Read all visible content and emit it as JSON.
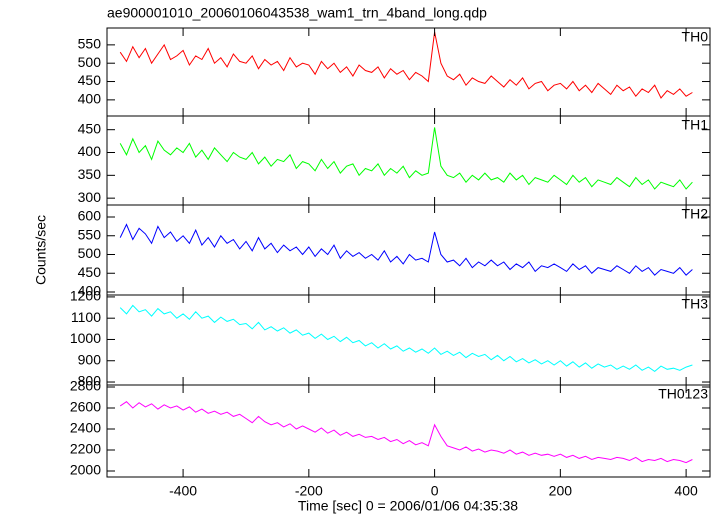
{
  "title": "ae900001010_20060106043538_wam1_trn_4band_long.qdp",
  "xlabel": "Time [sec] 0 = 2006/01/06 04:35:38",
  "ylabel": "Counts/sec",
  "chart_data": [
    {
      "type": "line",
      "label": "TH0",
      "color": "#ff0000",
      "xlim": [
        -521,
        438
      ],
      "ylim": [
        356,
        596
      ],
      "yticks": [
        400,
        450,
        500,
        550
      ],
      "x": [
        -500,
        -490,
        -480,
        -470,
        -460,
        -450,
        -440,
        -430,
        -420,
        -410,
        -400,
        -390,
        -380,
        -370,
        -360,
        -350,
        -340,
        -330,
        -320,
        -310,
        -300,
        -290,
        -280,
        -270,
        -260,
        -250,
        -240,
        -230,
        -220,
        -210,
        -200,
        -190,
        -180,
        -170,
        -160,
        -150,
        -140,
        -130,
        -120,
        -110,
        -100,
        -90,
        -80,
        -70,
        -60,
        -50,
        -40,
        -30,
        -20,
        -10,
        0,
        10,
        20,
        30,
        40,
        50,
        60,
        70,
        80,
        90,
        100,
        110,
        120,
        130,
        140,
        150,
        160,
        170,
        180,
        190,
        200,
        210,
        220,
        230,
        240,
        250,
        260,
        270,
        280,
        290,
        300,
        310,
        320,
        330,
        340,
        350,
        360,
        370,
        380,
        390,
        400,
        410
      ],
      "values": [
        530,
        505,
        545,
        515,
        540,
        500,
        525,
        550,
        510,
        520,
        535,
        495,
        520,
        510,
        540,
        500,
        515,
        490,
        525,
        505,
        500,
        520,
        485,
        510,
        495,
        505,
        480,
        515,
        490,
        500,
        495,
        470,
        505,
        485,
        500,
        475,
        490,
        465,
        495,
        480,
        475,
        490,
        460,
        485,
        470,
        480,
        455,
        475,
        465,
        450,
        585,
        500,
        465,
        455,
        470,
        440,
        460,
        450,
        445,
        465,
        450,
        435,
        455,
        440,
        460,
        430,
        445,
        450,
        425,
        440,
        445,
        430,
        450,
        425,
        440,
        420,
        445,
        430,
        415,
        440,
        425,
        435,
        410,
        430,
        420,
        440,
        405,
        425,
        415,
        430,
        410,
        420
      ]
    },
    {
      "type": "line",
      "label": "TH1",
      "color": "#00ff00",
      "xlim": [
        -521,
        438
      ],
      "ylim": [
        285,
        480
      ],
      "yticks": [
        300,
        350,
        400,
        450
      ],
      "x": [
        -500,
        -490,
        -480,
        -470,
        -460,
        -450,
        -440,
        -430,
        -420,
        -410,
        -400,
        -390,
        -380,
        -370,
        -360,
        -350,
        -340,
        -330,
        -320,
        -310,
        -300,
        -290,
        -280,
        -270,
        -260,
        -250,
        -240,
        -230,
        -220,
        -210,
        -200,
        -190,
        -180,
        -170,
        -160,
        -150,
        -140,
        -130,
        -120,
        -110,
        -100,
        -90,
        -80,
        -70,
        -60,
        -50,
        -40,
        -30,
        -20,
        -10,
        0,
        10,
        20,
        30,
        40,
        50,
        60,
        70,
        80,
        90,
        100,
        110,
        120,
        130,
        140,
        150,
        160,
        170,
        180,
        190,
        200,
        210,
        220,
        230,
        240,
        250,
        260,
        270,
        280,
        290,
        300,
        310,
        320,
        330,
        340,
        350,
        360,
        370,
        380,
        390,
        400,
        410
      ],
      "values": [
        420,
        395,
        430,
        400,
        415,
        385,
        425,
        405,
        395,
        410,
        400,
        420,
        390,
        405,
        385,
        410,
        395,
        380,
        400,
        390,
        385,
        400,
        375,
        390,
        370,
        385,
        380,
        395,
        365,
        380,
        375,
        360,
        385,
        365,
        380,
        355,
        370,
        375,
        350,
        365,
        360,
        375,
        350,
        365,
        355,
        370,
        345,
        360,
        350,
        355,
        455,
        370,
        350,
        345,
        355,
        335,
        350,
        340,
        355,
        340,
        345,
        335,
        355,
        340,
        350,
        330,
        345,
        340,
        335,
        350,
        340,
        330,
        350,
        335,
        345,
        325,
        340,
        335,
        330,
        345,
        335,
        325,
        345,
        330,
        340,
        320,
        335,
        330,
        325,
        340,
        320,
        335
      ]
    },
    {
      "type": "line",
      "label": "TH2",
      "color": "#0000ff",
      "xlim": [
        -521,
        438
      ],
      "ylim": [
        392,
        632
      ],
      "yticks": [
        400,
        450,
        500,
        550,
        600
      ],
      "x": [
        -500,
        -490,
        -480,
        -470,
        -460,
        -450,
        -440,
        -430,
        -420,
        -410,
        -400,
        -390,
        -380,
        -370,
        -360,
        -350,
        -340,
        -330,
        -320,
        -310,
        -300,
        -290,
        -280,
        -270,
        -260,
        -250,
        -240,
        -230,
        -220,
        -210,
        -200,
        -190,
        -180,
        -170,
        -160,
        -150,
        -140,
        -130,
        -120,
        -110,
        -100,
        -90,
        -80,
        -70,
        -60,
        -50,
        -40,
        -30,
        -20,
        -10,
        0,
        10,
        20,
        30,
        40,
        50,
        60,
        70,
        80,
        90,
        100,
        110,
        120,
        130,
        140,
        150,
        160,
        170,
        180,
        190,
        200,
        210,
        220,
        230,
        240,
        250,
        260,
        270,
        280,
        290,
        300,
        310,
        320,
        330,
        340,
        350,
        360,
        370,
        380,
        390,
        400,
        410
      ],
      "values": [
        545,
        580,
        540,
        570,
        555,
        530,
        575,
        545,
        560,
        535,
        550,
        530,
        565,
        525,
        545,
        520,
        550,
        530,
        540,
        515,
        535,
        510,
        545,
        515,
        530,
        505,
        525,
        510,
        520,
        500,
        520,
        495,
        515,
        500,
        525,
        490,
        510,
        495,
        505,
        490,
        500,
        485,
        510,
        480,
        495,
        475,
        500,
        485,
        490,
        480,
        560,
        500,
        480,
        485,
        470,
        490,
        465,
        480,
        470,
        485,
        470,
        480,
        460,
        475,
        465,
        480,
        455,
        470,
        465,
        475,
        465,
        455,
        475,
        460,
        470,
        450,
        465,
        460,
        455,
        470,
        460,
        450,
        470,
        455,
        465,
        445,
        460,
        455,
        450,
        465,
        445,
        460
      ]
    },
    {
      "type": "line",
      "label": "TH3",
      "color": "#00ffff",
      "xlim": [
        -521,
        438
      ],
      "ylim": [
        786,
        1209
      ],
      "yticks": [
        800,
        900,
        1000,
        1100,
        1200
      ],
      "x": [
        -500,
        -490,
        -480,
        -470,
        -460,
        -450,
        -440,
        -430,
        -420,
        -410,
        -400,
        -390,
        -380,
        -370,
        -360,
        -350,
        -340,
        -330,
        -320,
        -310,
        -300,
        -290,
        -280,
        -270,
        -260,
        -250,
        -240,
        -230,
        -220,
        -210,
        -200,
        -190,
        -180,
        -170,
        -160,
        -150,
        -140,
        -130,
        -120,
        -110,
        -100,
        -90,
        -80,
        -70,
        -60,
        -50,
        -40,
        -30,
        -20,
        -10,
        0,
        10,
        20,
        30,
        40,
        50,
        60,
        70,
        80,
        90,
        100,
        110,
        120,
        130,
        140,
        150,
        160,
        170,
        180,
        190,
        200,
        210,
        220,
        230,
        240,
        250,
        260,
        270,
        280,
        290,
        300,
        310,
        320,
        330,
        340,
        350,
        360,
        370,
        380,
        390,
        400,
        410
      ],
      "values": [
        1150,
        1120,
        1160,
        1130,
        1140,
        1110,
        1145,
        1120,
        1130,
        1100,
        1120,
        1095,
        1130,
        1100,
        1110,
        1080,
        1105,
        1085,
        1095,
        1070,
        1075,
        1050,
        1080,
        1045,
        1060,
        1040,
        1055,
        1030,
        1045,
        1020,
        1030,
        1005,
        1025,
        1000,
        1015,
        990,
        1010,
        985,
        995,
        970,
        985,
        960,
        980,
        955,
        970,
        945,
        960,
        940,
        955,
        935,
        960,
        930,
        945,
        925,
        940,
        915,
        935,
        920,
        930,
        905,
        925,
        900,
        920,
        895,
        910,
        890,
        905,
        885,
        900,
        880,
        900,
        875,
        895,
        870,
        890,
        865,
        885,
        870,
        880,
        860,
        875,
        860,
        880,
        855,
        870,
        850,
        875,
        860,
        865,
        855,
        870,
        880
      ]
    },
    {
      "type": "line",
      "label": "TH0123",
      "color": "#ff00ff",
      "xlim": [
        -521,
        438
      ],
      "ylim": [
        1943,
        2819
      ],
      "yticks": [
        2000,
        2200,
        2400,
        2600,
        2800
      ],
      "xticks": [
        -400,
        -200,
        0,
        200,
        400
      ],
      "x": [
        -500,
        -490,
        -480,
        -470,
        -460,
        -450,
        -440,
        -430,
        -420,
        -410,
        -400,
        -390,
        -380,
        -370,
        -360,
        -350,
        -340,
        -330,
        -320,
        -310,
        -300,
        -290,
        -280,
        -270,
        -260,
        -250,
        -240,
        -230,
        -220,
        -210,
        -200,
        -190,
        -180,
        -170,
        -160,
        -150,
        -140,
        -130,
        -120,
        -110,
        -100,
        -90,
        -80,
        -70,
        -60,
        -50,
        -40,
        -30,
        -20,
        -10,
        0,
        10,
        20,
        30,
        40,
        50,
        60,
        70,
        80,
        90,
        100,
        110,
        120,
        130,
        140,
        150,
        160,
        170,
        180,
        190,
        200,
        210,
        220,
        230,
        240,
        250,
        260,
        270,
        280,
        290,
        300,
        310,
        320,
        330,
        340,
        350,
        360,
        370,
        380,
        390,
        400,
        410
      ],
      "values": [
        2620,
        2660,
        2600,
        2650,
        2610,
        2640,
        2590,
        2630,
        2600,
        2620,
        2580,
        2610,
        2560,
        2590,
        2550,
        2570,
        2540,
        2560,
        2520,
        2540,
        2500,
        2460,
        2520,
        2470,
        2440,
        2460,
        2420,
        2450,
        2400,
        2430,
        2400,
        2370,
        2410,
        2360,
        2390,
        2340,
        2370,
        2330,
        2350,
        2320,
        2330,
        2300,
        2320,
        2280,
        2300,
        2260,
        2290,
        2250,
        2270,
        2240,
        2440,
        2330,
        2240,
        2220,
        2200,
        2230,
        2190,
        2210,
        2180,
        2200,
        2190,
        2170,
        2200,
        2160,
        2180,
        2150,
        2170,
        2150,
        2160,
        2140,
        2160,
        2130,
        2150,
        2120,
        2140,
        2110,
        2130,
        2120,
        2110,
        2130,
        2120,
        2100,
        2130,
        2090,
        2110,
        2100,
        2120,
        2090,
        2110,
        2100,
        2080,
        2110
      ]
    }
  ]
}
